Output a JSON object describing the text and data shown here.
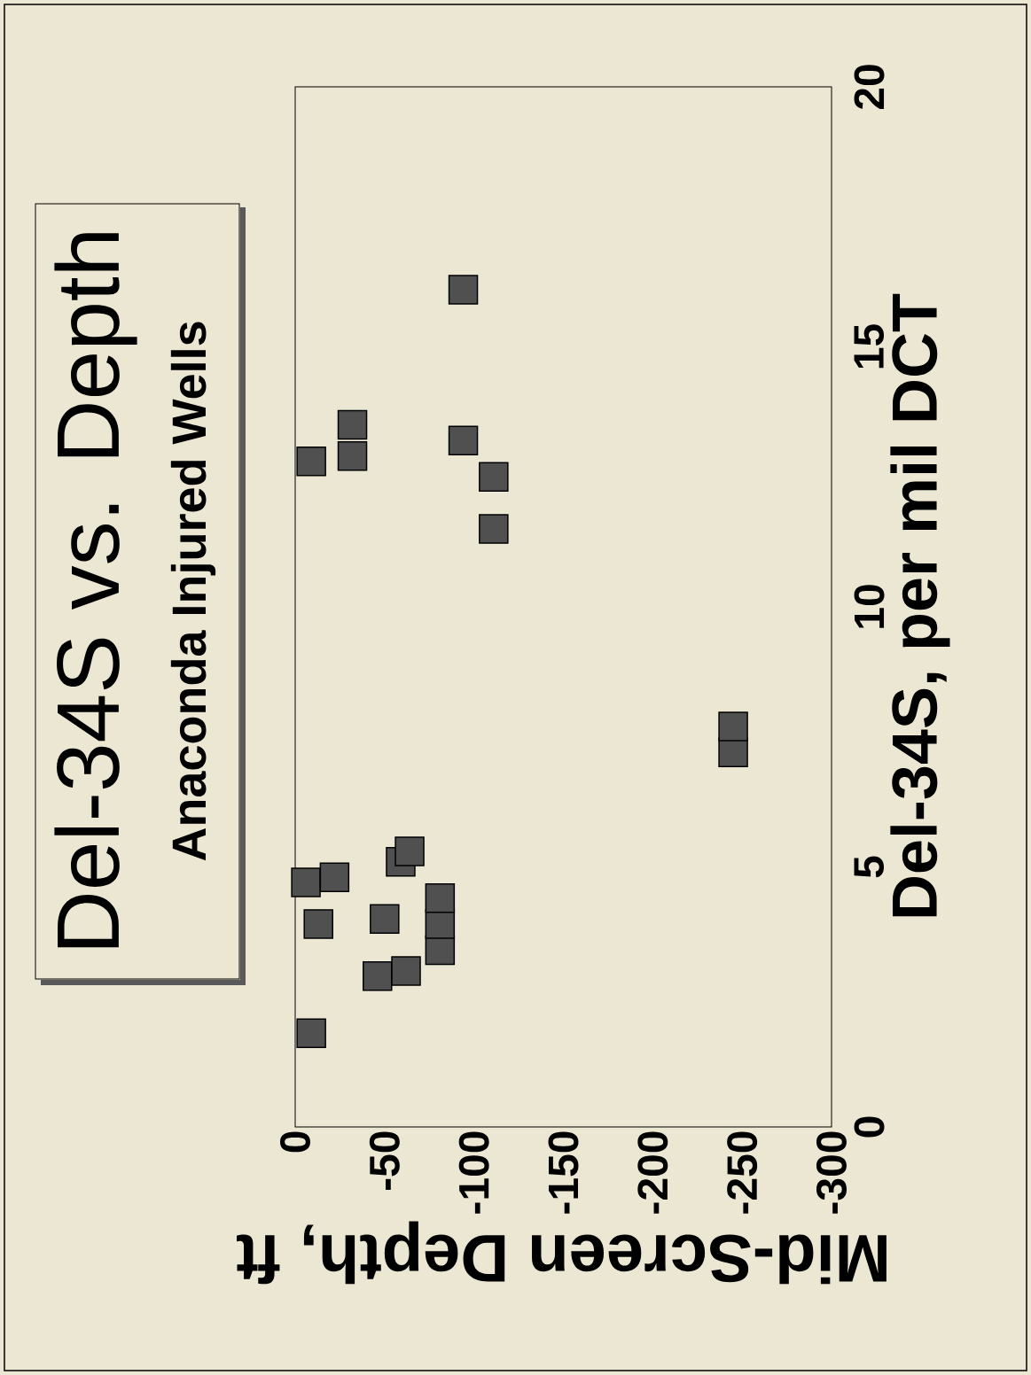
{
  "chart_data": {
    "type": "scatter",
    "title": "Del-34S vs. Depth",
    "subtitle": "Anaconda Injured Wells",
    "xlabel": "Mid-Screen Depth, ft",
    "ylabel": "Del-34S, per mil DCT",
    "x": [
      -9,
      -46,
      -62,
      -81,
      -81,
      -81,
      -13,
      -50,
      -6,
      -22,
      -59,
      -64,
      -245,
      -245,
      -111,
      -111,
      -9,
      -32,
      -32,
      -94,
      -94
    ],
    "values": [
      1.8,
      2.9,
      3.0,
      3.4,
      3.9,
      4.4,
      3.9,
      4.0,
      4.7,
      4.8,
      5.1,
      5.3,
      7.2,
      7.7,
      11.5,
      12.5,
      12.8,
      12.9,
      13.5,
      13.2,
      16.1
    ],
    "color": "#505050",
    "marker": "square",
    "xlim": [
      0,
      -300
    ],
    "ylim": [
      0,
      20
    ],
    "xticks": [
      0,
      -50,
      -100,
      -150,
      -200,
      -250,
      -300
    ],
    "yticks": [
      0,
      5,
      10,
      15,
      20
    ]
  }
}
